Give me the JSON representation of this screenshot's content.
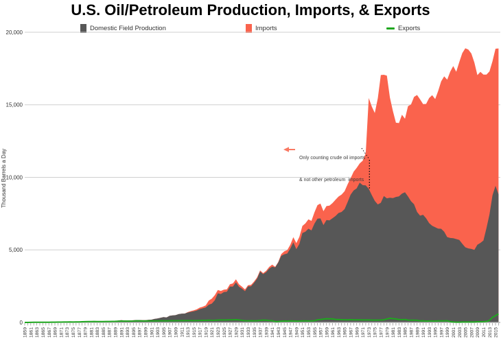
{
  "title": "U.S. Oil/Petroleum Production, Imports, & Exports",
  "annotation": {
    "line1": "Only counting crude oil imports",
    "line2": "& not other petroleum  imports",
    "year": 1973,
    "arrow_color": "#F97963"
  },
  "axis": {
    "zero_line_color": "#ABABAB",
    "grid_color": "#CFCFCF",
    "tick_color": "#999999",
    "label_color": "#333333"
  },
  "chart_data": {
    "type": "area",
    "stacked": true,
    "grid": true,
    "legend_position": "top",
    "title": "U.S. Oil/Petroleum Production, Imports, & Exports",
    "xlabel": "",
    "ylabel": "Thousand Barrels a Day",
    "ylim": [
      0,
      20000
    ],
    "yticks": [
      0,
      5000,
      10000,
      15000,
      20000
    ],
    "x_start": 1859,
    "x_end": 2016,
    "x_tick_first": 1859,
    "x_tick_last": 2015,
    "x_tick_step": 2,
    "series": [
      {
        "name": "Domestic Field Production",
        "kind": "area",
        "color": "#575757",
        "values": [
          0,
          1,
          6,
          8,
          7,
          6,
          7,
          10,
          9,
          10,
          12,
          14,
          14,
          17,
          27,
          30,
          24,
          25,
          37,
          42,
          55,
          72,
          76,
          83,
          64,
          66,
          60,
          77,
          78,
          76,
          96,
          126,
          149,
          138,
          133,
          135,
          145,
          167,
          166,
          152,
          156,
          174,
          190,
          243,
          275,
          321,
          369,
          347,
          455,
          489,
          502,
          574,
          604,
          611,
          681,
          728,
          770,
          824,
          919,
          975,
          1037,
          1214,
          1294,
          1528,
          2007,
          1956,
          2092,
          2112,
          2469,
          2470,
          2760,
          2460,
          2332,
          2151,
          2481,
          2488,
          2730,
          3013,
          3505,
          3327,
          3466,
          3707,
          3842,
          3799,
          4125,
          4584,
          4695,
          4750,
          5088,
          5520,
          5046,
          5407,
          6158,
          6256,
          6458,
          6342,
          6807,
          7151,
          7170,
          6710,
          7054,
          7035,
          7183,
          7332,
          7542,
          7614,
          7804,
          8295,
          8810,
          9096,
          9238,
          9637,
          9463,
          9441,
          9208,
          8774,
          8375,
          8132,
          8245,
          8707,
          8552,
          8597,
          8572,
          8649,
          8688,
          8879,
          8971,
          8680,
          8349,
          8140,
          7613,
          7355,
          7417,
          7171,
          6847,
          6662,
          6560,
          6465,
          6452,
          6252,
          5881,
          5822,
          5801,
          5746,
          5681,
          5419,
          5178,
          5102,
          5064,
          5000,
          5353,
          5479,
          5645,
          6497,
          7441,
          8759,
          9415,
          8831
        ]
      },
      {
        "name": "Imports",
        "kind": "area",
        "color": "#FA634D",
        "values": [
          0,
          0,
          0,
          0,
          0,
          0,
          0,
          0,
          0,
          0,
          0,
          0,
          0,
          0,
          0,
          0,
          0,
          0,
          0,
          0,
          0,
          0,
          0,
          0,
          0,
          0,
          0,
          0,
          0,
          0,
          0,
          0,
          0,
          0,
          0,
          0,
          0,
          0,
          0,
          0,
          0,
          0,
          0,
          0,
          0,
          0,
          0,
          0,
          0,
          0,
          0,
          0,
          0,
          0,
          30,
          50,
          60,
          80,
          100,
          110,
          140,
          292,
          343,
          349,
          225,
          213,
          169,
          165,
          160,
          219,
          216,
          170,
          129,
          122,
          87,
          98,
          88,
          88,
          75,
          72,
          90,
          117,
          139,
          33,
          38,
          123,
          204,
          236,
          268,
          353,
          422,
          487,
          490,
          573,
          648,
          656,
          782,
          934,
          1022,
          953,
          965,
          1015,
          1045,
          1126,
          1132,
          1198,
          1238,
          1225,
          1129,
          1293,
          1408,
          1324,
          1681,
          2222,
          6256,
          6112,
          6056,
          7313,
          8807,
          8363,
          8456,
          6909,
          5996,
          5113,
          5051,
          5437,
          5067,
          6224,
          6678,
          7402,
          8061,
          8018,
          7627,
          7888,
          8620,
          8996,
          8835,
          9478,
          10162,
          10708,
          10852,
          11459,
          11871,
          11530,
          12264,
          13145,
          13714,
          13707,
          13468,
          12915,
          11691,
          11793,
          11436,
          10587,
          9859,
          9241,
          9449,
          10055
        ]
      },
      {
        "name": "Exports",
        "kind": "line",
        "color": "#1FA71F",
        "values": [
          0,
          1,
          3,
          8,
          10,
          10,
          12,
          15,
          15,
          18,
          20,
          22,
          25,
          28,
          30,
          32,
          30,
          32,
          38,
          45,
          50,
          55,
          60,
          65,
          60,
          62,
          58,
          65,
          68,
          70,
          78,
          85,
          95,
          90,
          88,
          90,
          95,
          105,
          110,
          100,
          100,
          105,
          105,
          110,
          110,
          115,
          115,
          110,
          120,
          120,
          120,
          125,
          125,
          125,
          130,
          130,
          125,
          130,
          135,
          140,
          140,
          150,
          140,
          145,
          160,
          170,
          165,
          170,
          175,
          180,
          190,
          170,
          140,
          120,
          115,
          120,
          115,
          120,
          140,
          160,
          150,
          130,
          120,
          60,
          60,
          90,
          100,
          90,
          110,
          100,
          90,
          95,
          110,
          110,
          100,
          105,
          120,
          180,
          200,
          230,
          255,
          250,
          240,
          210,
          200,
          190,
          185,
          180,
          190,
          180,
          175,
          180,
          170,
          170,
          170,
          160,
          160,
          160,
          165,
          180,
          235,
          287,
          260,
          240,
          200,
          190,
          204,
          160,
          155,
          155,
          145,
          110,
          115,
          90,
          100,
          100,
          95,
          110,
          110,
          110,
          120,
          50,
          30,
          20,
          20,
          30,
          30,
          30,
          30,
          30,
          45,
          45,
          50,
          70,
          135,
          350,
          465,
          590
        ]
      }
    ]
  }
}
